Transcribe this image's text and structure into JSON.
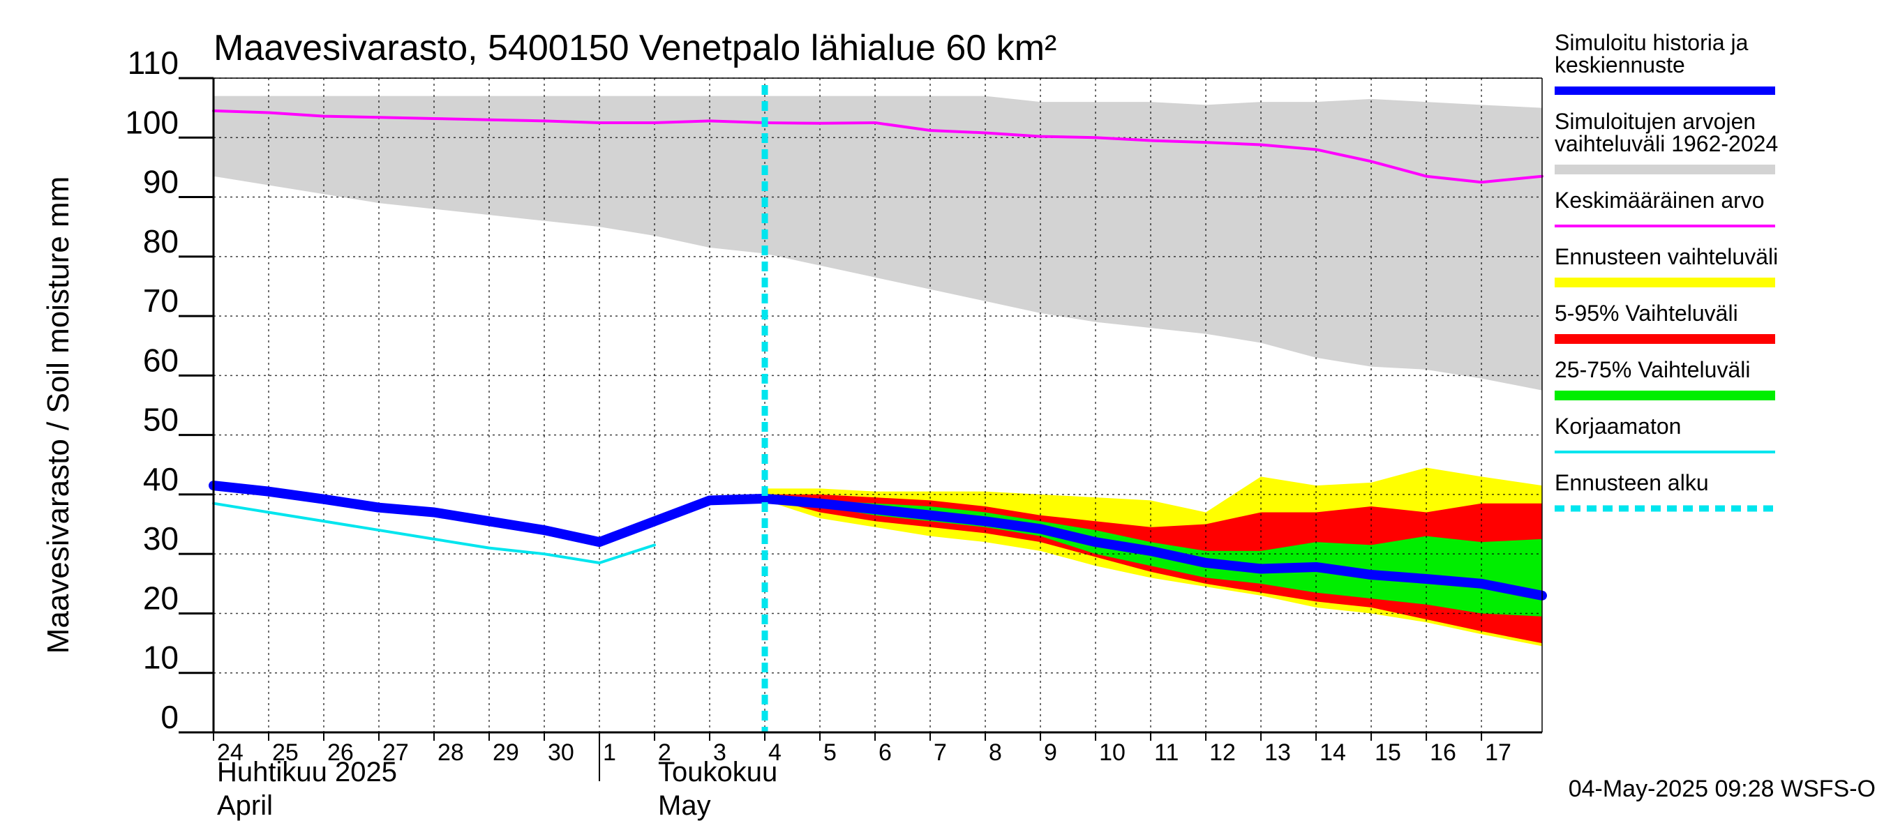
{
  "chart_data": {
    "type": "line",
    "title": "Maavesivarasto, 5400150 Venetpalo lähialue 60 km²",
    "ylabel": "Maavesivarasto / Soil moisture   mm",
    "ylim": [
      0,
      110
    ],
    "yticks": [
      0,
      10,
      20,
      30,
      40,
      50,
      60,
      70,
      80,
      90,
      100,
      110
    ],
    "grid": true,
    "x_start_day": "2025-04-24",
    "x_range_days": [
      0,
      24.1
    ],
    "x_tick_labels": [
      "24",
      "25",
      "26",
      "27",
      "28",
      "29",
      "30",
      "1",
      "2",
      "3",
      "4",
      "5",
      "6",
      "7",
      "8",
      "9",
      "10",
      "11",
      "12",
      "13",
      "14",
      "15",
      "16",
      "17"
    ],
    "month_labels": [
      {
        "lines": [
          "Huhtikuu  2025",
          "April"
        ],
        "day": 0
      },
      {
        "lines": [
          "Toukokuu",
          "May"
        ],
        "day": 8
      }
    ],
    "month_separator_day": 7,
    "forecast_start_day": 10,
    "legend": [
      {
        "label": [
          "Simuloitu historia ja",
          "keskiennuste"
        ],
        "color": "#0000ff",
        "style": "thick"
      },
      {
        "label": [
          "Simuloitujen arvojen",
          "vaihteluväli 1962-2024"
        ],
        "color": "#d3d3d3",
        "style": "band"
      },
      {
        "label": [
          "Keskimääräinen arvo"
        ],
        "color": "#ff00ff",
        "style": "thin"
      },
      {
        "label": [
          "Ennusteen vaihteluväli"
        ],
        "color": "#ffff00",
        "style": "band"
      },
      {
        "label": [
          "5-95% Vaihteluväli"
        ],
        "color": "#ff0000",
        "style": "band"
      },
      {
        "label": [
          "25-75% Vaihteluväli"
        ],
        "color": "#00ee00",
        "style": "band"
      },
      {
        "label": [
          "Korjaamaton"
        ],
        "color": "#00e5ee",
        "style": "thin"
      },
      {
        "label": [
          "Ennusteen alku"
        ],
        "color": "#00e5ee",
        "style": "dashed"
      }
    ],
    "timestamp": "04-May-2025 09:28 WSFS-O",
    "series": [
      {
        "name": "Simuloitujen arvojen vaihteluväli 1962-2024",
        "kind": "band",
        "color": "#d3d3d3",
        "x": [
          0,
          1,
          2,
          3,
          4,
          5,
          6,
          7,
          8,
          9,
          10,
          11,
          12,
          13,
          14,
          15,
          16,
          17,
          18,
          19,
          20,
          21,
          22,
          23,
          24.1
        ],
        "upper": [
          107,
          107,
          107,
          107,
          107,
          107,
          107,
          107,
          107,
          107,
          107,
          107,
          107,
          107,
          107,
          106,
          106,
          106,
          105.5,
          106,
          106,
          106.5,
          106,
          105.5,
          105
        ],
        "lower": [
          93.5,
          92,
          90.5,
          89,
          88,
          87,
          86,
          85,
          83.5,
          81.5,
          80.5,
          78.5,
          76.5,
          74.5,
          72.5,
          70.5,
          69,
          68,
          67,
          65.5,
          63,
          61.5,
          61,
          59.5,
          57.5
        ]
      },
      {
        "name": "Ennusteen vaihteluväli",
        "kind": "band",
        "color": "#ffff00",
        "x": [
          10,
          11,
          12,
          13,
          14,
          15,
          16,
          17,
          18,
          19,
          20,
          21,
          22,
          23,
          24.1
        ],
        "upper": [
          41,
          41,
          40.5,
          40.5,
          40.5,
          40,
          39.5,
          39,
          37,
          43,
          41.5,
          42,
          44.5,
          43,
          41.5
        ],
        "lower": [
          39,
          36,
          34.5,
          33,
          32,
          30.5,
          28,
          26,
          24.5,
          23,
          21,
          20,
          18.5,
          16.5,
          14.5
        ]
      },
      {
        "name": "5-95% Vaihteluväli",
        "kind": "band",
        "color": "#ff0000",
        "x": [
          10,
          11,
          12,
          13,
          14,
          15,
          16,
          17,
          18,
          19,
          20,
          21,
          22,
          23,
          24.1
        ],
        "upper": [
          40,
          40,
          39.5,
          39,
          38,
          36.5,
          35.5,
          34.5,
          35,
          37,
          37,
          38,
          37,
          38.5,
          38.5
        ],
        "lower": [
          39.5,
          37,
          35.5,
          34.5,
          33.5,
          32,
          29.5,
          27,
          25,
          23.5,
          22,
          21,
          19,
          17,
          15
        ]
      },
      {
        "name": "25-75% Vaihteluväli",
        "kind": "band",
        "color": "#00ee00",
        "x": [
          10,
          11,
          12,
          13,
          14,
          15,
          16,
          17,
          18,
          19,
          20,
          21,
          22,
          23,
          24.1
        ],
        "upper": [
          39.5,
          39,
          38.5,
          38,
          37,
          35.5,
          34,
          32,
          30.5,
          30.5,
          32,
          31.5,
          33,
          32,
          32.5
        ],
        "lower": [
          39.5,
          38,
          36.5,
          35.5,
          34.5,
          33,
          30,
          28,
          26,
          25,
          23.5,
          22.5,
          21.5,
          20,
          19.5
        ]
      },
      {
        "name": "Keskimääräinen arvo",
        "kind": "line",
        "color": "#ff00ff",
        "width": 4,
        "x": [
          0,
          1,
          2,
          3,
          4,
          5,
          6,
          7,
          8,
          9,
          10,
          11,
          12,
          13,
          14,
          15,
          16,
          17,
          18,
          19,
          20,
          21,
          22,
          23,
          24.1
        ],
        "values": [
          104.5,
          104.2,
          103.6,
          103.4,
          103.2,
          103.0,
          102.8,
          102.5,
          102.5,
          102.8,
          102.5,
          102.4,
          102.5,
          101.2,
          100.8,
          100.2,
          100.0,
          99.5,
          99.2,
          98.8,
          98.0,
          96.0,
          93.5,
          92.5,
          93.5
        ]
      },
      {
        "name": "Korjaamaton",
        "kind": "line",
        "color": "#00e5ee",
        "width": 4,
        "x": [
          0,
          1,
          2,
          3,
          4,
          5,
          6,
          7,
          8
        ],
        "values": [
          38.5,
          37,
          35.5,
          34,
          32.5,
          31,
          30,
          28.5,
          31.5
        ]
      },
      {
        "name": "Simuloitu historia ja keskiennuste",
        "kind": "line",
        "color": "#0000ff",
        "width": 14,
        "x": [
          0,
          1,
          2,
          3,
          4,
          5,
          6,
          7,
          8,
          9,
          10,
          11,
          12,
          13,
          14,
          15,
          16,
          17,
          18,
          19,
          20,
          21,
          22,
          23,
          24.1
        ],
        "values": [
          41.5,
          40.5,
          39.2,
          37.8,
          37.0,
          35.5,
          34.0,
          32.0,
          35.5,
          39.0,
          39.3,
          38.5,
          37.5,
          36.5,
          35.5,
          34.2,
          32.0,
          30.5,
          28.5,
          27.5,
          27.8,
          26.5,
          25.8,
          25.0,
          23.0
        ]
      }
    ]
  }
}
